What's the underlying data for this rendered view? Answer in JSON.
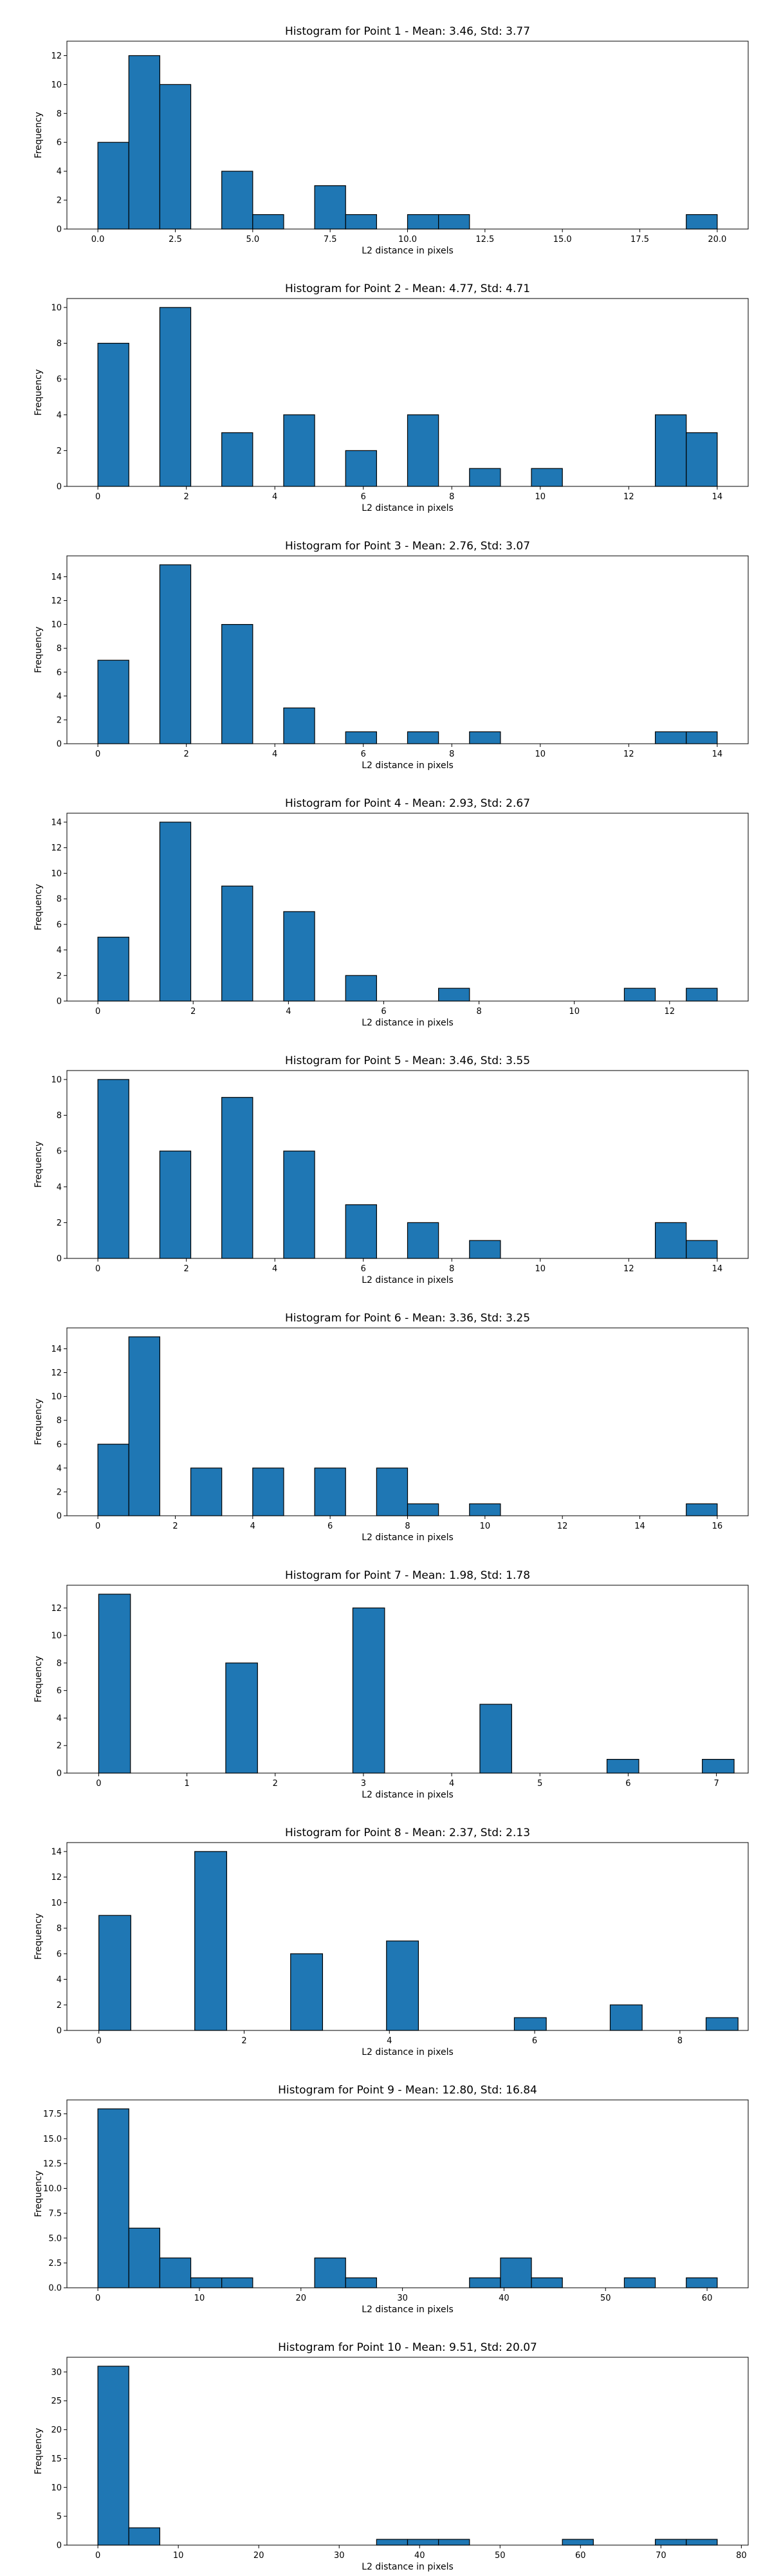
{
  "figure": {
    "background": "#ffffff",
    "bar_color": "#1f77b4",
    "edge_color": "#000000"
  },
  "chart_data": [
    {
      "type": "bar",
      "title": "Histogram for Point 1 - Mean: 3.46, Std: 3.77",
      "xlabel": "L2 distance in pixels",
      "ylabel": "Frequency",
      "xlim": [
        -1.0,
        21.0
      ],
      "ylim": [
        0,
        13
      ],
      "xticks": [
        0.0,
        2.5,
        5.0,
        7.5,
        10.0,
        12.5,
        15.0,
        17.5,
        20.0
      ],
      "xtick_labels": [
        "0.0",
        "2.5",
        "5.0",
        "7.5",
        "10.0",
        "12.5",
        "15.0",
        "17.5",
        "20.0"
      ],
      "yticks": [
        0,
        2,
        4,
        6,
        8,
        10,
        12
      ],
      "bins": [
        [
          0.0,
          1.0
        ],
        [
          1.0,
          2.0
        ],
        [
          2.0,
          3.0
        ],
        [
          3.0,
          4.0
        ],
        [
          4.0,
          5.0
        ],
        [
          5.0,
          6.0
        ],
        [
          6.0,
          7.0
        ],
        [
          7.0,
          8.0
        ],
        [
          8.0,
          9.0
        ],
        [
          9.0,
          10.0
        ],
        [
          10.0,
          11.0
        ],
        [
          11.0,
          12.0
        ],
        [
          12.0,
          13.0
        ],
        [
          13.0,
          14.0
        ],
        [
          14.0,
          15.0
        ],
        [
          15.0,
          16.0
        ],
        [
          16.0,
          17.0
        ],
        [
          17.0,
          18.0
        ],
        [
          18.0,
          19.0
        ],
        [
          19.0,
          20.0
        ]
      ],
      "values": [
        6,
        12,
        10,
        0,
        4,
        1,
        0,
        3,
        1,
        0,
        1,
        1,
        0,
        0,
        0,
        0,
        0,
        0,
        0,
        1
      ]
    },
    {
      "type": "bar",
      "title": "Histogram for Point 2 - Mean: 4.77, Std: 4.71",
      "xlabel": "L2 distance in pixels",
      "ylabel": "Frequency",
      "xlim": [
        -0.7,
        14.7
      ],
      "ylim": [
        0,
        10.5
      ],
      "xticks": [
        0,
        2,
        4,
        6,
        8,
        10,
        12,
        14
      ],
      "xtick_labels": [
        "0",
        "2",
        "4",
        "6",
        "8",
        "10",
        "12",
        "14"
      ],
      "yticks": [
        0,
        2,
        4,
        6,
        8,
        10
      ],
      "bins": [
        [
          0.0,
          0.7
        ],
        [
          0.7,
          1.4
        ],
        [
          1.4,
          2.1
        ],
        [
          2.1,
          2.8
        ],
        [
          2.8,
          3.5
        ],
        [
          3.5,
          4.2
        ],
        [
          4.2,
          4.9
        ],
        [
          4.9,
          5.6
        ],
        [
          5.6,
          6.3
        ],
        [
          6.3,
          7.0
        ],
        [
          7.0,
          7.7
        ],
        [
          7.7,
          8.4
        ],
        [
          8.4,
          9.1
        ],
        [
          9.1,
          9.8
        ],
        [
          9.8,
          10.5
        ],
        [
          10.5,
          11.2
        ],
        [
          11.2,
          11.9
        ],
        [
          11.9,
          12.6
        ],
        [
          12.6,
          13.3
        ],
        [
          13.3,
          14.0
        ]
      ],
      "values": [
        8,
        0,
        10,
        0,
        3,
        0,
        4,
        0,
        2,
        0,
        4,
        0,
        1,
        0,
        1,
        0,
        0,
        0,
        4,
        3
      ]
    },
    {
      "type": "bar",
      "title": "Histogram for Point 3 - Mean: 2.76, Std: 3.07",
      "xlabel": "L2 distance in pixels",
      "ylabel": "Frequency",
      "xlim": [
        -0.7,
        14.7
      ],
      "ylim": [
        0,
        15.75
      ],
      "xticks": [
        0,
        2,
        4,
        6,
        8,
        10,
        12,
        14
      ],
      "xtick_labels": [
        "0",
        "2",
        "4",
        "6",
        "8",
        "10",
        "12",
        "14"
      ],
      "yticks": [
        0,
        2,
        4,
        6,
        8,
        10,
        12,
        14
      ],
      "bins": [
        [
          0.0,
          0.7
        ],
        [
          0.7,
          1.4
        ],
        [
          1.4,
          2.1
        ],
        [
          2.1,
          2.8
        ],
        [
          2.8,
          3.5
        ],
        [
          3.5,
          4.2
        ],
        [
          4.2,
          4.9
        ],
        [
          4.9,
          5.6
        ],
        [
          5.6,
          6.3
        ],
        [
          6.3,
          7.0
        ],
        [
          7.0,
          7.7
        ],
        [
          7.7,
          8.4
        ],
        [
          8.4,
          9.1
        ],
        [
          9.1,
          9.8
        ],
        [
          9.8,
          10.5
        ],
        [
          10.5,
          11.2
        ],
        [
          11.2,
          11.9
        ],
        [
          11.9,
          12.6
        ],
        [
          12.6,
          13.3
        ],
        [
          13.3,
          14.0
        ]
      ],
      "values": [
        7,
        0,
        15,
        0,
        10,
        0,
        3,
        0,
        1,
        0,
        1,
        0,
        1,
        0,
        0,
        0,
        0,
        0,
        1,
        1
      ]
    },
    {
      "type": "bar",
      "title": "Histogram for Point 4 - Mean: 2.93, Std: 2.67",
      "xlabel": "L2 distance in pixels",
      "ylabel": "Frequency",
      "xlim": [
        -0.65,
        13.65
      ],
      "ylim": [
        0,
        14.7
      ],
      "xticks": [
        0,
        2,
        4,
        6,
        8,
        10,
        12
      ],
      "xtick_labels": [
        "0",
        "2",
        "4",
        "6",
        "8",
        "10",
        "12"
      ],
      "yticks": [
        0,
        2,
        4,
        6,
        8,
        10,
        12,
        14
      ],
      "bins": [
        [
          0.0,
          0.65
        ],
        [
          0.65,
          1.3
        ],
        [
          1.3,
          1.95
        ],
        [
          1.95,
          2.6
        ],
        [
          2.6,
          3.25
        ],
        [
          3.25,
          3.9
        ],
        [
          3.9,
          4.55
        ],
        [
          4.55,
          5.2
        ],
        [
          5.2,
          5.85
        ],
        [
          5.85,
          6.5
        ],
        [
          6.5,
          7.15
        ],
        [
          7.15,
          7.8
        ],
        [
          7.8,
          8.45
        ],
        [
          8.45,
          9.1
        ],
        [
          9.1,
          9.75
        ],
        [
          9.75,
          10.4
        ],
        [
          10.4,
          11.05
        ],
        [
          11.05,
          11.7
        ],
        [
          11.7,
          12.35
        ],
        [
          12.35,
          13.0
        ]
      ],
      "values": [
        5,
        0,
        14,
        0,
        9,
        0,
        7,
        0,
        2,
        0,
        0,
        1,
        0,
        0,
        0,
        0,
        0,
        1,
        0,
        1
      ]
    },
    {
      "type": "bar",
      "title": "Histogram for Point 5 - Mean: 3.46, Std: 3.55",
      "xlabel": "L2 distance in pixels",
      "ylabel": "Frequency",
      "xlim": [
        -0.7,
        14.7
      ],
      "ylim": [
        0,
        10.5
      ],
      "xticks": [
        0,
        2,
        4,
        6,
        8,
        10,
        12,
        14
      ],
      "xtick_labels": [
        "0",
        "2",
        "4",
        "6",
        "8",
        "10",
        "12",
        "14"
      ],
      "yticks": [
        0,
        2,
        4,
        6,
        8,
        10
      ],
      "bins": [
        [
          0.0,
          0.7
        ],
        [
          0.7,
          1.4
        ],
        [
          1.4,
          2.1
        ],
        [
          2.1,
          2.8
        ],
        [
          2.8,
          3.5
        ],
        [
          3.5,
          4.2
        ],
        [
          4.2,
          4.9
        ],
        [
          4.9,
          5.6
        ],
        [
          5.6,
          6.3
        ],
        [
          6.3,
          7.0
        ],
        [
          7.0,
          7.7
        ],
        [
          7.7,
          8.4
        ],
        [
          8.4,
          9.1
        ],
        [
          9.1,
          9.8
        ],
        [
          9.8,
          10.5
        ],
        [
          10.5,
          11.2
        ],
        [
          11.2,
          11.9
        ],
        [
          11.9,
          12.6
        ],
        [
          12.6,
          13.3
        ],
        [
          13.3,
          14.0
        ]
      ],
      "values": [
        10,
        0,
        6,
        0,
        9,
        0,
        6,
        0,
        3,
        0,
        2,
        0,
        1,
        0,
        0,
        0,
        0,
        0,
        2,
        1
      ]
    },
    {
      "type": "bar",
      "title": "Histogram for Point 6 - Mean: 3.36, Std: 3.25",
      "xlabel": "L2 distance in pixels",
      "ylabel": "Frequency",
      "xlim": [
        -0.8,
        16.8
      ],
      "ylim": [
        0,
        15.75
      ],
      "xticks": [
        0,
        2,
        4,
        6,
        8,
        10,
        12,
        14,
        16
      ],
      "xtick_labels": [
        "0",
        "2",
        "4",
        "6",
        "8",
        "10",
        "12",
        "14",
        "16"
      ],
      "yticks": [
        0,
        2,
        4,
        6,
        8,
        10,
        12,
        14
      ],
      "bins": [
        [
          0.0,
          0.8
        ],
        [
          0.8,
          1.6
        ],
        [
          1.6,
          2.4
        ],
        [
          2.4,
          3.2
        ],
        [
          3.2,
          4.0
        ],
        [
          4.0,
          4.8
        ],
        [
          4.8,
          5.6
        ],
        [
          5.6,
          6.4
        ],
        [
          6.4,
          7.2
        ],
        [
          7.2,
          8.0
        ],
        [
          8.0,
          8.8
        ],
        [
          8.8,
          9.6
        ],
        [
          9.6,
          10.4
        ],
        [
          10.4,
          11.2
        ],
        [
          11.2,
          12.0
        ],
        [
          12.0,
          12.8
        ],
        [
          12.8,
          13.6
        ],
        [
          13.6,
          14.4
        ],
        [
          14.4,
          15.2
        ],
        [
          15.2,
          16.0
        ]
      ],
      "values": [
        6,
        15,
        0,
        4,
        0,
        4,
        0,
        4,
        0,
        4,
        1,
        0,
        1,
        0,
        0,
        0,
        0,
        0,
        0,
        1
      ]
    },
    {
      "type": "bar",
      "title": "Histogram for Point 7 - Mean: 1.98, Std: 1.78",
      "xlabel": "L2 distance in pixels",
      "ylabel": "Frequency",
      "xlim": [
        -0.36,
        7.36
      ],
      "ylim": [
        0,
        13.65
      ],
      "xticks": [
        0,
        1,
        2,
        3,
        4,
        5,
        6,
        7
      ],
      "xtick_labels": [
        "0",
        "1",
        "2",
        "3",
        "4",
        "5",
        "6",
        "7"
      ],
      "yticks": [
        0,
        2,
        4,
        6,
        8,
        10,
        12
      ],
      "bins": [
        [
          0.0,
          0.36
        ],
        [
          0.36,
          0.72
        ],
        [
          0.72,
          1.08
        ],
        [
          1.08,
          1.44
        ],
        [
          1.44,
          1.8
        ],
        [
          1.8,
          2.16
        ],
        [
          2.16,
          2.52
        ],
        [
          2.52,
          2.88
        ],
        [
          2.88,
          3.24
        ],
        [
          3.24,
          3.6
        ],
        [
          3.6,
          3.96
        ],
        [
          3.96,
          4.32
        ],
        [
          4.32,
          4.68
        ],
        [
          4.68,
          5.04
        ],
        [
          5.04,
          5.4
        ],
        [
          5.4,
          5.76
        ],
        [
          5.76,
          6.12
        ],
        [
          6.12,
          6.48
        ],
        [
          6.48,
          6.84
        ],
        [
          6.84,
          7.2
        ]
      ],
      "values": [
        13,
        0,
        0,
        0,
        8,
        0,
        0,
        0,
        12,
        0,
        0,
        0,
        5,
        0,
        0,
        0,
        1,
        0,
        0,
        1
      ]
    },
    {
      "type": "bar",
      "title": "Histogram for Point 8 - Mean: 2.37, Std: 2.13",
      "xlabel": "L2 distance in pixels",
      "ylabel": "Frequency",
      "xlim": [
        -0.44,
        8.94
      ],
      "ylim": [
        0,
        14.7
      ],
      "xticks": [
        0,
        2,
        4,
        6,
        8
      ],
      "xtick_labels": [
        "0",
        "2",
        "4",
        "6",
        "8"
      ],
      "yticks": [
        0,
        2,
        4,
        6,
        8,
        10,
        12,
        14
      ],
      "bins": [
        [
          0.0,
          0.44
        ],
        [
          0.44,
          0.88
        ],
        [
          0.88,
          1.32
        ],
        [
          1.32,
          1.76
        ],
        [
          1.76,
          2.2
        ],
        [
          2.2,
          2.64
        ],
        [
          2.64,
          3.08
        ],
        [
          3.08,
          3.52
        ],
        [
          3.52,
          3.96
        ],
        [
          3.96,
          4.4
        ],
        [
          4.4,
          4.84
        ],
        [
          4.84,
          5.28
        ],
        [
          5.28,
          5.72
        ],
        [
          5.72,
          6.16
        ],
        [
          6.16,
          6.6
        ],
        [
          6.6,
          7.04
        ],
        [
          7.04,
          7.48
        ],
        [
          7.48,
          7.92
        ],
        [
          7.92,
          8.36
        ],
        [
          8.36,
          8.8
        ]
      ],
      "values": [
        9,
        0,
        0,
        14,
        0,
        0,
        6,
        0,
        0,
        7,
        0,
        0,
        0,
        1,
        0,
        0,
        2,
        0,
        0,
        1
      ]
    },
    {
      "type": "bar",
      "title": "Histogram for Point 9 - Mean: 12.80, Std: 16.84",
      "xlabel": "L2 distance in pixels",
      "ylabel": "Frequency",
      "xlim": [
        -3.05,
        64.05
      ],
      "ylim": [
        0,
        18.9
      ],
      "xticks": [
        0,
        10,
        20,
        30,
        40,
        50,
        60
      ],
      "xtick_labels": [
        "0",
        "10",
        "20",
        "30",
        "40",
        "50",
        "60"
      ],
      "yticks": [
        0.0,
        2.5,
        5.0,
        7.5,
        10.0,
        12.5,
        15.0,
        17.5
      ],
      "ytick_labels": [
        "0.0",
        "2.5",
        "5.0",
        "7.5",
        "10.0",
        "12.5",
        "15.0",
        "17.5"
      ],
      "bins": [
        [
          0.0,
          3.05
        ],
        [
          3.05,
          6.1
        ],
        [
          6.1,
          9.15
        ],
        [
          9.15,
          12.2
        ],
        [
          12.2,
          15.25
        ],
        [
          15.25,
          18.3
        ],
        [
          18.3,
          21.35
        ],
        [
          21.35,
          24.4
        ],
        [
          24.4,
          27.45
        ],
        [
          27.45,
          30.5
        ],
        [
          30.5,
          33.55
        ],
        [
          33.55,
          36.6
        ],
        [
          36.6,
          39.65
        ],
        [
          39.65,
          42.7
        ],
        [
          42.7,
          45.75
        ],
        [
          45.75,
          48.8
        ],
        [
          48.8,
          51.85
        ],
        [
          51.85,
          54.9
        ],
        [
          54.9,
          57.95
        ],
        [
          57.95,
          61.0
        ]
      ],
      "values": [
        18,
        6,
        3,
        1,
        1,
        0,
        0,
        3,
        1,
        0,
        0,
        0,
        1,
        3,
        1,
        0,
        0,
        1,
        0,
        1
      ]
    },
    {
      "type": "bar",
      "title": "Histogram for Point 10 - Mean: 9.51, Std: 20.07",
      "xlabel": "L2 distance in pixels",
      "ylabel": "Frequency",
      "xlim": [
        -3.85,
        80.85
      ],
      "ylim": [
        0,
        32.55
      ],
      "xticks": [
        0,
        10,
        20,
        30,
        40,
        50,
        60,
        70,
        80
      ],
      "xtick_labels": [
        "0",
        "10",
        "20",
        "30",
        "40",
        "50",
        "60",
        "70",
        "80"
      ],
      "yticks": [
        0,
        5,
        10,
        15,
        20,
        25,
        30
      ],
      "bins": [
        [
          0.0,
          3.85
        ],
        [
          3.85,
          7.7
        ],
        [
          7.7,
          11.55
        ],
        [
          11.55,
          15.4
        ],
        [
          15.4,
          19.25
        ],
        [
          19.25,
          23.1
        ],
        [
          23.1,
          26.95
        ],
        [
          26.95,
          30.8
        ],
        [
          30.8,
          34.65
        ],
        [
          34.65,
          38.5
        ],
        [
          38.5,
          42.35
        ],
        [
          42.35,
          46.2
        ],
        [
          46.2,
          50.05
        ],
        [
          50.05,
          53.9
        ],
        [
          53.9,
          57.75
        ],
        [
          57.75,
          61.6
        ],
        [
          61.6,
          65.45
        ],
        [
          65.45,
          69.3
        ],
        [
          69.3,
          73.15
        ],
        [
          73.15,
          77.0
        ]
      ],
      "values": [
        31,
        3,
        0,
        0,
        0,
        0,
        0,
        0,
        0,
        1,
        1,
        1,
        0,
        0,
        0,
        1,
        0,
        0,
        1,
        1
      ]
    }
  ]
}
